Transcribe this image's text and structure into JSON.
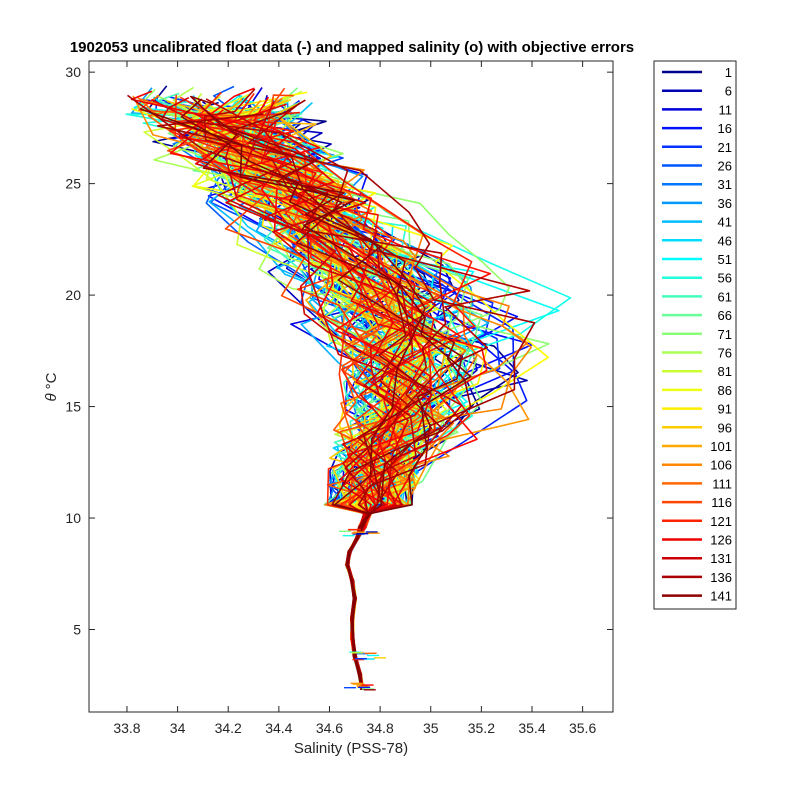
{
  "chart_data": {
    "type": "line",
    "title": "1902053 uncalibrated float data (-) and mapped salinity (o) with objective errors",
    "xlabel": "Salinity (PSS-78)",
    "ylabel_symbol": "θ",
    "ylabel_unit": "°C",
    "xlim": [
      33.65,
      35.72
    ],
    "ylim": [
      1.3,
      30.5
    ],
    "xticks": [
      33.8,
      34,
      34.2,
      34.4,
      34.6,
      34.8,
      35,
      35.2,
      35.4,
      35.6
    ],
    "xtick_labels": [
      "33.8",
      "34",
      "34.2",
      "34.4",
      "34.6",
      "34.8",
      "35",
      "35.2",
      "35.4",
      "35.6"
    ],
    "yticks": [
      5,
      10,
      15,
      20,
      25,
      30
    ],
    "ytick_labels": [
      "5",
      "10",
      "15",
      "20",
      "25",
      "30"
    ],
    "grid": false,
    "legend_position": "outside-right",
    "colormap": "jet",
    "legend": [
      "1",
      "6",
      "11",
      "16",
      "21",
      "26",
      "31",
      "36",
      "41",
      "46",
      "51",
      "56",
      "61",
      "66",
      "71",
      "76",
      "81",
      "86",
      "91",
      "96",
      "101",
      "106",
      "111",
      "116",
      "121",
      "126",
      "131",
      "136",
      "141"
    ],
    "legend_colors": [
      "#00008f",
      "#0000b5",
      "#0000db",
      "#0011ff",
      "#0033ff",
      "#0055ff",
      "#0077ff",
      "#0099ff",
      "#00bbff",
      "#00ddff",
      "#00ffff",
      "#22ffdd",
      "#44ffbb",
      "#66ff99",
      "#88ff77",
      "#aaff55",
      "#ccff33",
      "#eeff11",
      "#ffee00",
      "#ffcc00",
      "#ffaa00",
      "#ff8800",
      "#ff6600",
      "#ff4400",
      "#ff2200",
      "#ee0000",
      "#cc0000",
      "#aa0000",
      "#8f0000"
    ],
    "profile_count": 145,
    "deep_profile": [
      [
        34.73,
        2.3
      ],
      [
        34.72,
        3.0
      ],
      [
        34.7,
        3.8
      ],
      [
        34.69,
        4.6
      ],
      [
        34.69,
        5.5
      ],
      [
        34.7,
        6.4
      ],
      [
        34.69,
        7.2
      ],
      [
        34.67,
        7.9
      ],
      [
        34.68,
        8.5
      ],
      [
        34.71,
        9.1
      ],
      [
        34.73,
        9.6
      ],
      [
        34.75,
        10.2
      ]
    ]
  }
}
